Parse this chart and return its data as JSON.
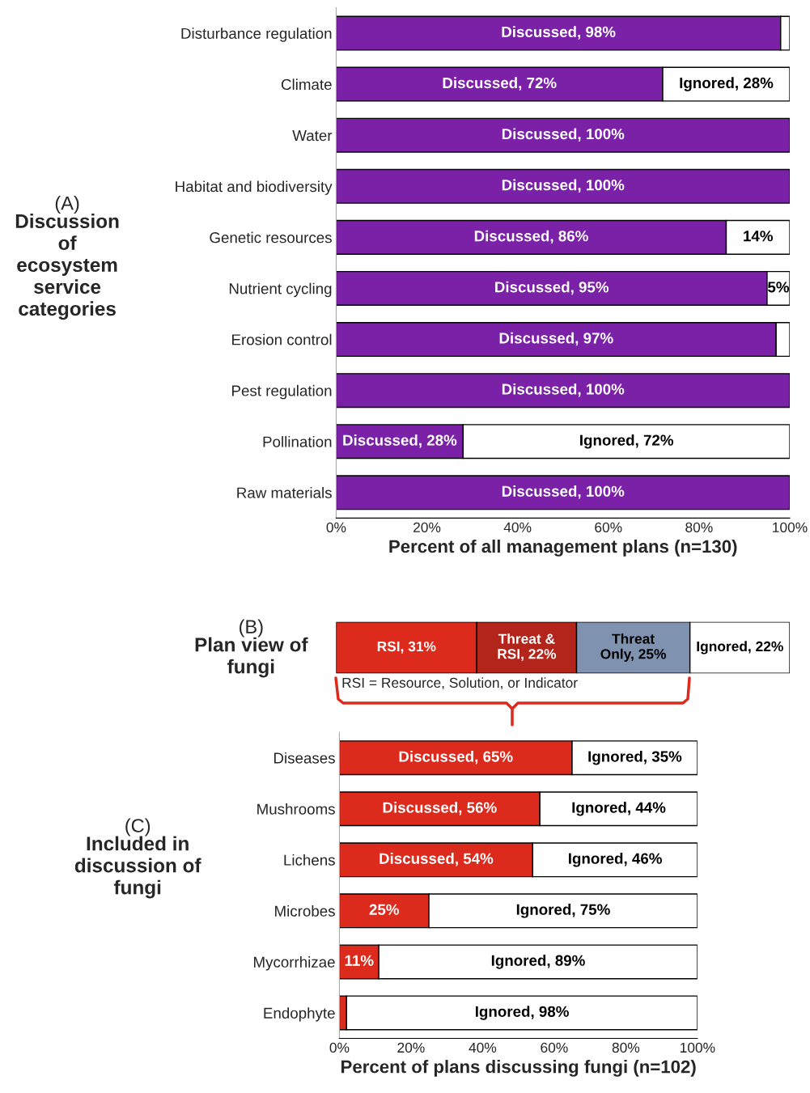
{
  "chart_data": [
    {
      "type": "bar",
      "title": "(A)",
      "subtitle": "Discussion\nof\necosystem\nservice\ncategories",
      "xlabel": "Percent of all management plans (n=130)",
      "orientation": "horizontal",
      "stacked": true,
      "categories": [
        "Disturbance regulation",
        "Climate",
        "Water",
        "Habitat and biodiversity",
        "Genetic resources",
        "Nutrient cycling",
        "Erosion control",
        "Pest regulation",
        "Pollination",
        "Raw materials"
      ],
      "series": [
        {
          "color": "#7b21a8",
          "values": [
            98,
            72,
            100,
            100,
            86,
            95,
            97,
            100,
            28,
            100
          ],
          "value_labels": [
            "Discussed, 98%",
            "Discussed, 72%",
            "Discussed, 100%",
            "Discussed, 100%",
            "Discussed, 86%",
            "Discussed, 95%",
            "Discussed, 97%",
            "Discussed, 100%",
            "Discussed, 28%",
            "Discussed, 100%"
          ]
        },
        {
          "color": "#ffffff",
          "values": [
            2,
            28,
            0,
            0,
            14,
            5,
            3,
            0,
            72,
            0
          ],
          "value_labels": [
            null,
            "Ignored, 28%",
            null,
            null,
            "14%",
            "5%",
            null,
            null,
            "Ignored, 72%",
            null
          ]
        }
      ],
      "xlim": [
        0,
        100
      ],
      "xticks": [
        {
          "value": 0,
          "label": "0%"
        },
        {
          "value": 20,
          "label": "20%"
        },
        {
          "value": 40,
          "label": "40%"
        },
        {
          "value": 60,
          "label": "60%"
        },
        {
          "value": 80,
          "label": "80%"
        },
        {
          "value": 100,
          "label": "100%"
        }
      ],
      "grid": false
    },
    {
      "type": "bar",
      "title": "(B)",
      "subtitle": "Plan view of\nfungi",
      "orientation": "horizontal",
      "stacked": true,
      "categories": [
        null
      ],
      "series": [
        {
          "color": "#dc2a1c",
          "values": [
            31
          ],
          "value_labels": [
            "RSI, 31%"
          ]
        },
        {
          "color": "#b3241b",
          "values": [
            22
          ],
          "value_labels": [
            "Threat &\nRSI, 22%"
          ]
        },
        {
          "color": "#7f92b0",
          "values": [
            25
          ],
          "value_labels": [
            "Threat\nOnly, 25%"
          ]
        },
        {
          "color": "#ffffff",
          "values": [
            22
          ],
          "value_labels": [
            "Ignored, 22%"
          ]
        }
      ],
      "xlim": [
        0,
        100
      ],
      "tick_labels": false,
      "grid": false,
      "annotations": [
        "RSI = Resource, Solution, or Indicator"
      ]
    },
    {
      "type": "bar",
      "title": "(C)",
      "subtitle": "Included in\ndiscussion of\nfungi",
      "xlabel": "Percent of plans discussing fungi (n=102)",
      "orientation": "horizontal",
      "stacked": true,
      "categories": [
        "Diseases",
        "Mushrooms",
        "Lichens",
        "Microbes",
        "Mycorrhizae",
        "Endophyte"
      ],
      "series": [
        {
          "color": "#dc2a1c",
          "values": [
            65,
            56,
            54,
            25,
            11,
            2
          ],
          "value_labels": [
            "Discussed, 65%",
            "Discussed, 56%",
            "Discussed, 54%",
            "25%",
            "11%",
            null
          ]
        },
        {
          "color": "#ffffff",
          "values": [
            35,
            44,
            46,
            75,
            89,
            98
          ],
          "value_labels": [
            "Ignored, 35%",
            "Ignored, 44%",
            "Ignored, 46%",
            "Ignored, 75%",
            "Ignored, 89%",
            "Ignored, 98%"
          ]
        }
      ],
      "xlim": [
        0,
        100
      ],
      "xticks": [
        {
          "value": 0,
          "label": "0%"
        },
        {
          "value": 20,
          "label": "20%"
        },
        {
          "value": 40,
          "label": "40%"
        },
        {
          "value": 60,
          "label": "60%"
        },
        {
          "value": 80,
          "label": "80%"
        },
        {
          "value": 100,
          "label": "100%"
        }
      ],
      "grid": false
    }
  ]
}
